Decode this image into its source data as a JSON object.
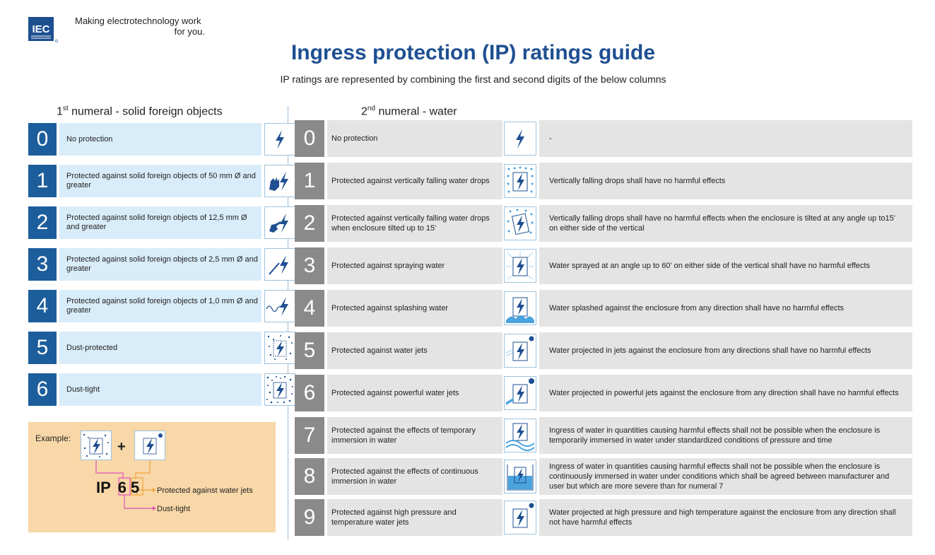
{
  "header": {
    "logo_text": "IEC",
    "tagline_1": "Making  electrotechnology work",
    "tagline_2": "for you.",
    "title": "Ingress protection (IP) ratings guide",
    "subtitle": "IP ratings are represented by combining the first and second digits of the below columns"
  },
  "first_numeral": {
    "heading_pre": "1",
    "heading_sup": "st",
    "heading_post": " numeral - solid foreign objects",
    "rows": [
      {
        "num": "0",
        "desc": "No protection",
        "icon": "lightning-icon"
      },
      {
        "num": "1",
        "desc": "Protected against solid foreign objects of 50 mm Ø and greater",
        "icon": "hand-lightning-icon"
      },
      {
        "num": "2",
        "desc": "Protected against solid foreign objects of 12,5 mm Ø and greater",
        "icon": "finger-lightning-icon"
      },
      {
        "num": "3",
        "desc": "Protected against solid foreign objects of 2,5 mm Ø and greater",
        "icon": "tool-lightning-icon"
      },
      {
        "num": "4",
        "desc": "Protected against solid foreign objects of 1,0 mm Ø and greater",
        "icon": "wire-lightning-icon"
      },
      {
        "num": "5",
        "desc": "Dust-protected",
        "icon": "dust-lightning-icon"
      },
      {
        "num": "6",
        "desc": "Dust-tight",
        "icon": "dense-dust-lightning-icon"
      }
    ]
  },
  "second_numeral": {
    "heading_pre": "2",
    "heading_sup": "nd",
    "heading_post": " numeral - water",
    "rows": [
      {
        "num": "0",
        "desc": "No protection",
        "detail": "-",
        "icon": "lightning-icon"
      },
      {
        "num": "1",
        "desc": "Protected against vertically falling water drops",
        "detail": "Vertically falling drops shall have no harmful effects",
        "icon": "drops-lightning-icon"
      },
      {
        "num": "2",
        "desc": "Protected against vertically falling water drops when enclosure tilted up to 15'",
        "detail": "Vertically falling drops shall have no harmful effects when the enclosure is tilted at any angle up to15' on either side of the vertical",
        "icon": "tilted-drops-lightning-icon"
      },
      {
        "num": "3",
        "desc": "Protected against spraying water",
        "detail": "Water sprayed at an angle up to 60' on either side of the vertical shall have no harmful effects",
        "icon": "spray-lightning-icon"
      },
      {
        "num": "4",
        "desc": "Protected against splashing water",
        "detail": "Water splashed against the enclosure from any direction shall have no harmful effects",
        "icon": "splash-lightning-icon"
      },
      {
        "num": "5",
        "desc": "Protected against water jets",
        "detail": "Water projected in jets against the enclosure from any directions shall have no harmful effects",
        "icon": "jet-lightning-icon"
      },
      {
        "num": "6",
        "desc": "Protected against powerful water jets",
        "detail": "Water projected in powerful jets against the enclosure from any direction shall have no harmful effects",
        "icon": "powerful-jet-lightning-icon"
      },
      {
        "num": "7",
        "desc": "Protected against the effects of temporary immersion in water",
        "detail": "Ingress of water in quantities causing harmful effects shall not be possible when the enclosure is temporarily immersed in water under standardized conditions of pressure and time",
        "icon": "wave-lightning-icon"
      },
      {
        "num": "8",
        "desc": "Protected against the effects of continuous immersion in water",
        "detail": "Ingress of water in quantities causing harmful effects shall not be possible when the enclosure is continuously immersed in water under conditions which shall be agreed between manufacturer and user but which are more severe than for numeral 7",
        "icon": "immersion-lightning-icon"
      },
      {
        "num": "9",
        "desc": "Protected against high pressure and temperature water jets",
        "detail": "Water projected at high pressure and high temperature against the enclosure from any direction shall not have harmful effects",
        "icon": "pressure-jet-lightning-icon"
      }
    ]
  },
  "example": {
    "label": "Example:",
    "plus": "+",
    "ip_prefix": "IP",
    "digit_1": "6",
    "digit_2": "5",
    "note_jets": "Protected against water jets",
    "note_dust": "Dust-tight"
  },
  "colors": {
    "brand_blue": "#1e4f91",
    "first_numeral_box": "#1c5d9c",
    "first_numeral_row": "#d9ecf9",
    "second_numeral_box": "#8a8a8a",
    "second_numeral_row": "#e4e4e4",
    "example_bg": "#f8d7a8",
    "arrow_orange": "#f2a33a",
    "arrow_magenta": "#e052b8"
  }
}
